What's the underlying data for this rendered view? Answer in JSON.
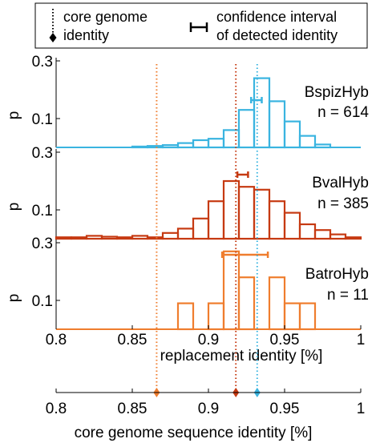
{
  "colors": {
    "BspizHyb": "#3ab4e0",
    "BvalHyb": "#c63a12",
    "BatroHyb": "#ef7d2e",
    "axis": "#000000"
  },
  "legend": {
    "core_line1": "core genome",
    "core_line2": "identity",
    "ci_line1": "confidence interval",
    "ci_line2": "of detected identity"
  },
  "chart_data": {
    "type": "bar",
    "xlabel": "replacement identity [%]",
    "ylabel": "p",
    "xlim": [
      0.8,
      1.0
    ],
    "ylim": [
      0,
      0.3
    ],
    "x_ticks": [
      "0.8",
      "0.85",
      "0.9",
      "0.95",
      "1"
    ],
    "y_ticks": [
      "0.1",
      "0.3"
    ],
    "bin_edges": [
      0.8,
      0.81,
      0.82,
      0.83,
      0.84,
      0.85,
      0.86,
      0.87,
      0.88,
      0.89,
      0.9,
      0.91,
      0.92,
      0.93,
      0.94,
      0.95,
      0.96,
      0.97,
      0.98,
      0.99,
      1.0
    ],
    "panels": [
      {
        "name": "BspizHyb",
        "n_label": "n = 614",
        "color_key": "BspizHyb",
        "values": [
          0.0,
          0.0,
          0.0,
          0.0,
          0.0,
          0.003,
          0.005,
          0.008,
          0.015,
          0.025,
          0.03,
          0.06,
          0.13,
          0.24,
          0.16,
          0.09,
          0.04,
          0.01,
          0.0,
          0.0
        ],
        "core_identity": 0.932,
        "ci": [
          0.928,
          0.935
        ]
      },
      {
        "name": "BvalHyb",
        "n_label": "n = 385",
        "color_key": "BvalHyb",
        "values": [
          0.005,
          0.005,
          0.01,
          0.007,
          0.005,
          0.01,
          0.005,
          0.02,
          0.035,
          0.07,
          0.13,
          0.2,
          0.18,
          0.17,
          0.13,
          0.09,
          0.05,
          0.03,
          0.015,
          0.005
        ],
        "core_identity": 0.918,
        "ci": [
          0.919,
          0.926
        ]
      },
      {
        "name": "BatroHyb",
        "n_label": "n = 11",
        "color_key": "BatroHyb",
        "values": [
          0.0,
          0.0,
          0.0,
          0.0,
          0.0,
          0.0,
          0.0,
          0.0,
          0.09,
          0.0,
          0.09,
          0.27,
          0.18,
          0.0,
          0.18,
          0.09,
          0.09,
          0.0,
          0.0,
          0.0
        ],
        "core_identity": 0.866,
        "ci": [
          0.909,
          0.939
        ]
      }
    ],
    "bottom_axis": {
      "xlabel": "core genome sequence identity [%]",
      "xlim": [
        0.8,
        1.0
      ],
      "x_ticks": [
        "0.8",
        "0.85",
        "0.9",
        "0.95",
        "1"
      ]
    }
  }
}
